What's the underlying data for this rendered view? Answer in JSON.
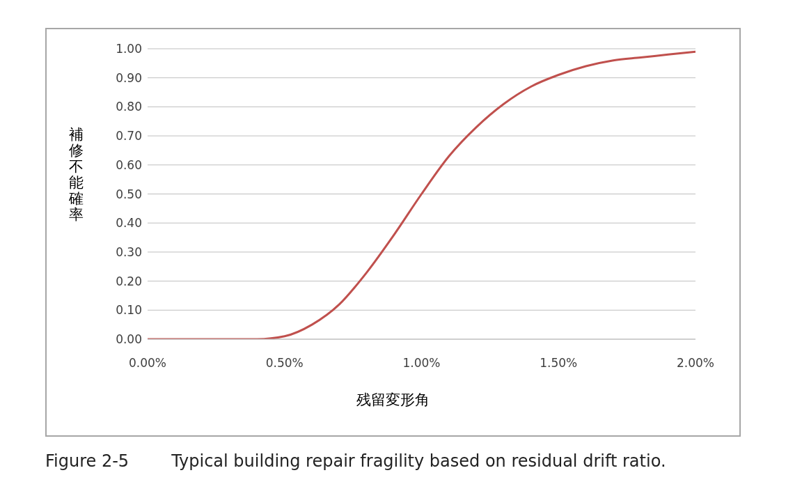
{
  "chart_data": {
    "type": "line",
    "title": "Figure 2-5        Typical building repair fragility based on residual drift ratio.",
    "xlabel": "残留変形角",
    "ylabel": "補修不能確率",
    "x": [
      0,
      0.1,
      0.2,
      0.3,
      0.4,
      0.5,
      0.6,
      0.7,
      0.8,
      0.9,
      1.0,
      1.1,
      1.2,
      1.3,
      1.4,
      1.5,
      1.6,
      1.7,
      1.8,
      1.9,
      2.0
    ],
    "series": [
      {
        "color": "#c0504d",
        "values": [
          0,
          0,
          0,
          0,
          0,
          0.01,
          0.05,
          0.12,
          0.23,
          0.36,
          0.5,
          0.63,
          0.73,
          0.81,
          0.87,
          0.91,
          0.94,
          0.96,
          0.97,
          0.98,
          0.99
        ]
      }
    ],
    "xlim": [
      0,
      2
    ],
    "xticks": [
      {
        "value": 0,
        "label": "0.00%"
      },
      {
        "value": 0.5,
        "label": "0.50%"
      },
      {
        "value": 1,
        "label": "1.00%"
      },
      {
        "value": 1.5,
        "label": "1.50%"
      },
      {
        "value": 2,
        "label": "2.00%"
      }
    ],
    "ylim": [
      0,
      1
    ],
    "yticks": [
      {
        "value": 0,
        "label": "0.00"
      },
      {
        "value": 0.1,
        "label": "0.10"
      },
      {
        "value": 0.2,
        "label": "0.20"
      },
      {
        "value": 0.3,
        "label": "0.30"
      },
      {
        "value": 0.4,
        "label": "0.40"
      },
      {
        "value": 0.5,
        "label": "0.50"
      },
      {
        "value": 0.6,
        "label": "0.60"
      },
      {
        "value": 0.7,
        "label": "0.70"
      },
      {
        "value": 0.8,
        "label": "0.80"
      },
      {
        "value": 0.9,
        "label": "0.90"
      },
      {
        "value": 1,
        "label": "1.00"
      }
    ],
    "grid": "y",
    "marker": "none",
    "line_style": "solid"
  }
}
